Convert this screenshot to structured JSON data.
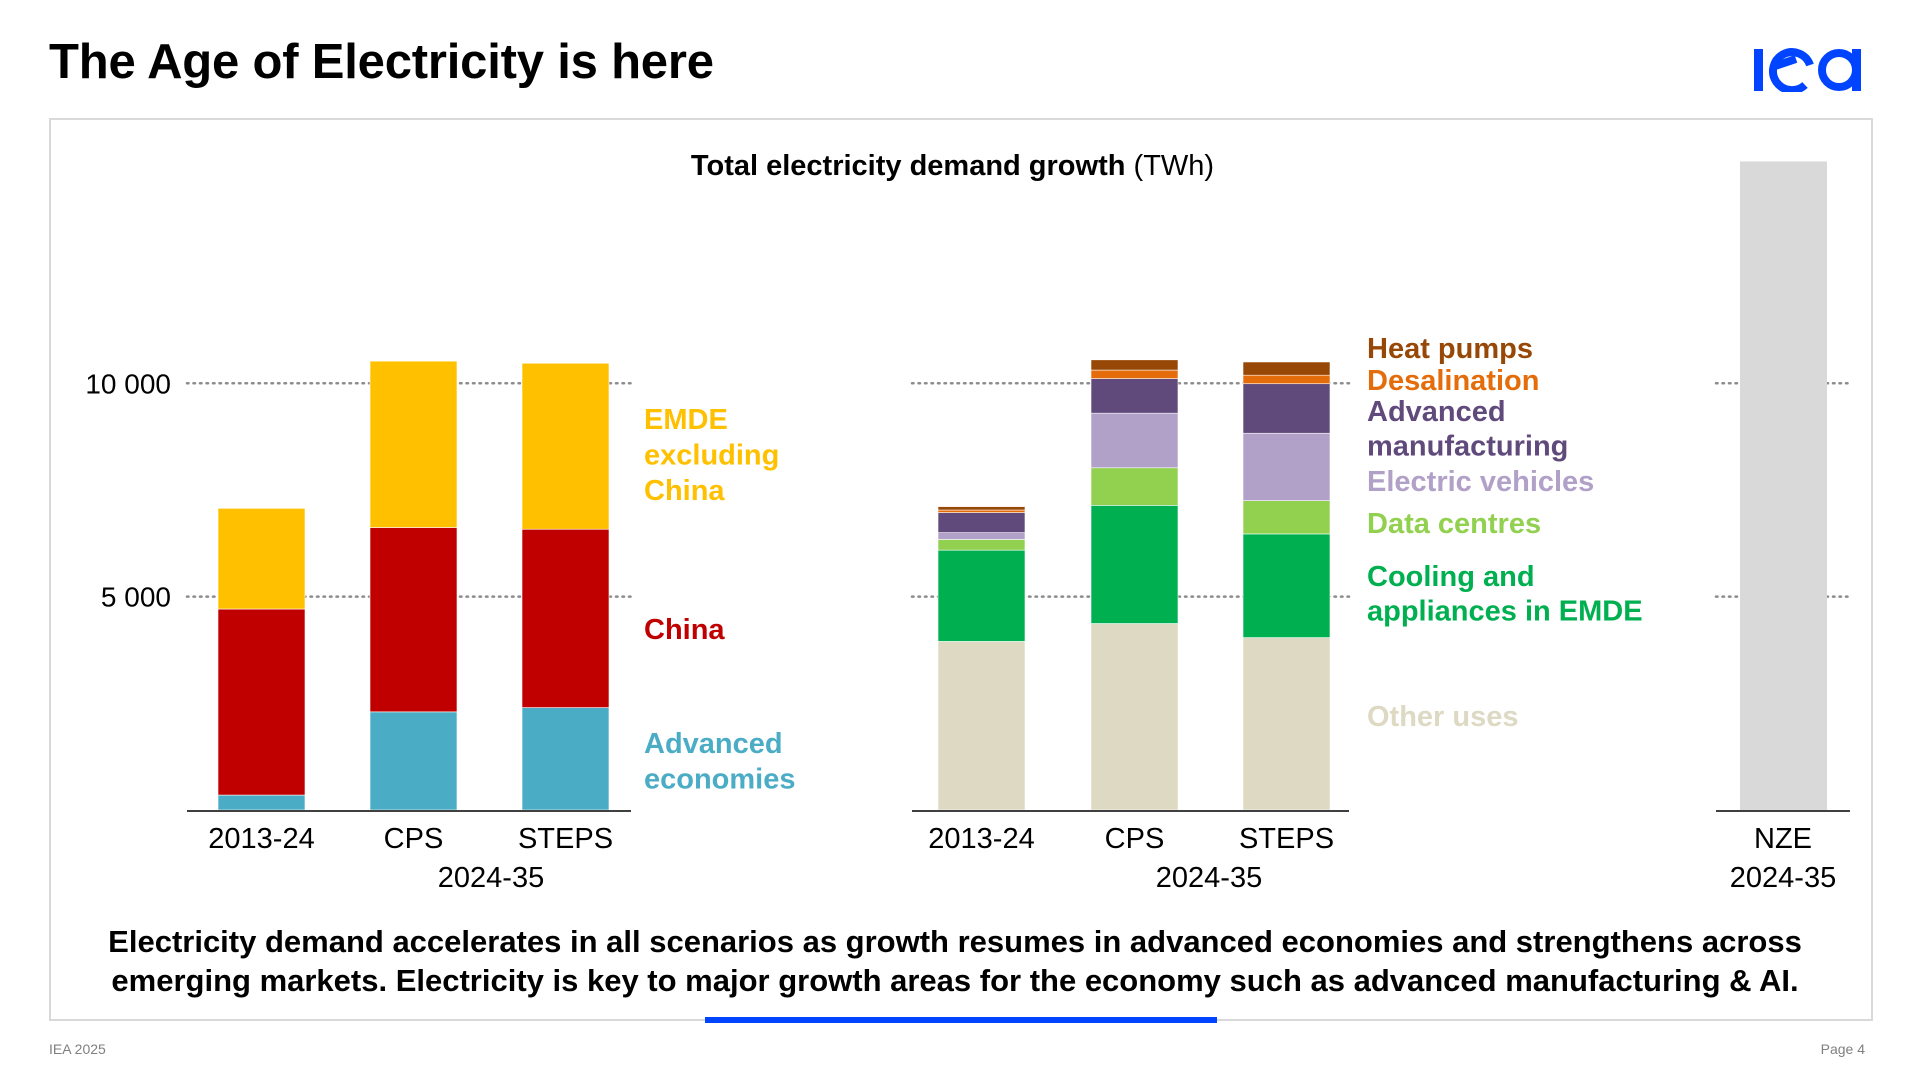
{
  "page": {
    "title": "The Age of Electricity is here",
    "footer_left": "IEA 2025",
    "footer_right": "Page 4",
    "logo_text": "iea",
    "brand_color": "#0044ff",
    "summary_line1": "Electricity demand accelerates in all scenarios as growth resumes in advanced economies and strengthens across",
    "summary_line2": "emerging markets. Electricity is key to major growth areas for the economy such as advanced manufacturing & AI."
  },
  "chart_data": [
    {
      "type": "bar",
      "stacked": true,
      "title": "Total electricity demand growth",
      "title_unit": "(TWh)",
      "ylabel": "TWh",
      "ylim": [
        0,
        12500
      ],
      "yticks": [
        5000,
        10000
      ],
      "ytick_labels": [
        "5 000",
        "10 000"
      ],
      "grid": "dotted",
      "categories": [
        "2013-24",
        "CPS",
        "STEPS"
      ],
      "period_label": "2024-35",
      "legend_placement": "right",
      "series": [
        {
          "name": "Advanced economies",
          "label_lines": [
            "Advanced",
            "economies"
          ],
          "color": "#4bacc6",
          "values": [
            350,
            2300,
            2400
          ]
        },
        {
          "name": "China",
          "label_lines": [
            "China"
          ],
          "color": "#c00000",
          "values": [
            4360,
            4320,
            4180
          ]
        },
        {
          "name": "EMDE excluding China",
          "label_lines": [
            "EMDE",
            "excluding",
            "China"
          ],
          "color": "#ffc000",
          "values": [
            2360,
            3900,
            3890
          ]
        }
      ]
    },
    {
      "type": "bar",
      "stacked": true,
      "ylim": [
        0,
        12500
      ],
      "yticks": [
        5000,
        10000
      ],
      "grid": "dotted",
      "categories": [
        "2013-24",
        "CPS",
        "STEPS"
      ],
      "period_label": "2024-35",
      "legend_placement": "right",
      "series": [
        {
          "name": "Other uses",
          "label_lines": [
            "Other uses"
          ],
          "color": "#ddd9c3",
          "values": [
            3950,
            4370,
            4040
          ]
        },
        {
          "name": "Cooling and appliances in EMDE",
          "label_lines": [
            "Cooling and",
            "appliances in EMDE"
          ],
          "color": "#00b050",
          "values": [
            2140,
            2770,
            2430
          ]
        },
        {
          "name": "Data centres",
          "label_lines": [
            "Data centres"
          ],
          "color": "#92d050",
          "values": [
            250,
            880,
            780
          ]
        },
        {
          "name": "Electric vehicles",
          "label_lines": [
            "Electric vehicles"
          ],
          "color": "#b1a0c7",
          "values": [
            160,
            1280,
            1580
          ]
        },
        {
          "name": "Advanced manufacturing",
          "label_lines": [
            "Advanced",
            "manufacturing"
          ],
          "color": "#604a7b",
          "values": [
            470,
            810,
            1160
          ]
        },
        {
          "name": "Desalination",
          "label_lines": [
            "Desalination"
          ],
          "color": "#e46c0a",
          "values": [
            60,
            200,
            200
          ]
        },
        {
          "name": "Heat pumps",
          "label_lines": [
            "Heat pumps"
          ],
          "color": "#974706",
          "values": [
            80,
            240,
            310
          ]
        }
      ]
    },
    {
      "type": "bar",
      "categories": [
        "NZE"
      ],
      "period_label": "2024-35",
      "series": [
        {
          "name": "NZE (masked)",
          "color": "#d9d9d9",
          "values": [
            15200
          ]
        }
      ],
      "yticks": [
        5000,
        10000
      ],
      "grid": "dotted"
    }
  ]
}
